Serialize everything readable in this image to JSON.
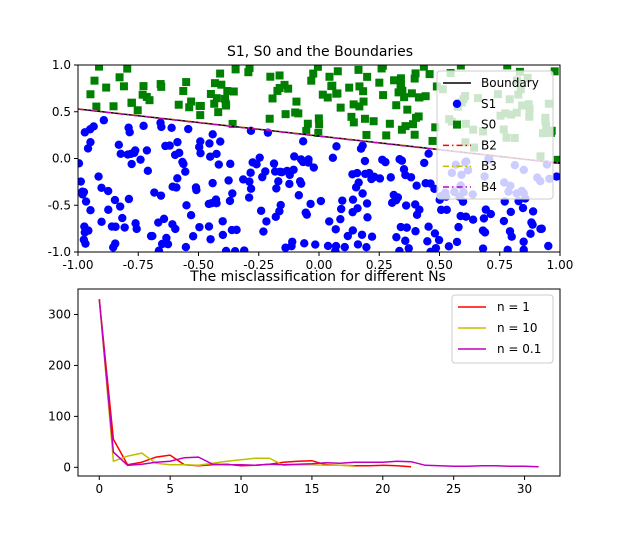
{
  "chart_data": [
    {
      "type": "scatter",
      "title": "S1, S0 and the Boundaries",
      "xlim": [
        -1.0,
        1.0
      ],
      "ylim": [
        -1.0,
        1.0
      ],
      "xticks": [
        "-1.00",
        "-0.75",
        "-0.50",
        "-0.25",
        "0.00",
        "0.25",
        "0.50",
        "0.75",
        "1.00"
      ],
      "yticks": [
        "-1.0",
        "-0.5",
        "0.0",
        "0.5",
        "1.0"
      ],
      "grid": false,
      "legend_position": "top-right",
      "boundary": {
        "x1": -1.0,
        "y1": 0.53,
        "x2": 1.0,
        "y2": -0.05
      },
      "legend": [
        {
          "label": "Boundary",
          "color": "#000000",
          "marker": "line",
          "dash": "solid"
        },
        {
          "label": "S1",
          "color": "#0000ff",
          "marker": "circle"
        },
        {
          "label": "S0",
          "color": "#008000",
          "marker": "square"
        },
        {
          "label": "B2",
          "color": "#ff0000",
          "marker": "line",
          "dash": "dashdot"
        },
        {
          "label": "B3",
          "color": "#bfbf00",
          "marker": "line",
          "dash": "dashdot"
        },
        {
          "label": "B4",
          "color": "#bf00bf",
          "marker": "line",
          "dash": "dashdot"
        }
      ],
      "point_counts": {
        "S1": 290,
        "S0": 160
      }
    },
    {
      "type": "line",
      "title": "The misclassification for different Ns",
      "xlim": [
        -1.5,
        32.5
      ],
      "ylim": [
        -17,
        350
      ],
      "xticks": [
        0,
        5,
        10,
        15,
        20,
        25,
        30
      ],
      "yticks": [
        0,
        100,
        200,
        300
      ],
      "legend_position": "top-right",
      "series": [
        {
          "name": "n = 1",
          "color": "#ff0000",
          "x": [
            0,
            1,
            2,
            3,
            4,
            5,
            6,
            7,
            8,
            9,
            10,
            11,
            12,
            13,
            14,
            15,
            16,
            17,
            18,
            19,
            20,
            21,
            22
          ],
          "y": [
            330,
            55,
            5,
            10,
            20,
            24,
            5,
            3,
            5,
            6,
            3,
            4,
            6,
            10,
            12,
            13,
            5,
            4,
            3,
            3,
            4,
            3,
            1
          ]
        },
        {
          "name": "n = 10",
          "color": "#bfbf00",
          "x": [
            0,
            1,
            2,
            3,
            4,
            5,
            6,
            7,
            8,
            9,
            10,
            11,
            12,
            13,
            14,
            15,
            16,
            17,
            18
          ],
          "y": [
            330,
            12,
            22,
            28,
            8,
            5,
            5,
            4,
            8,
            12,
            15,
            18,
            18,
            4,
            5,
            5,
            4,
            4,
            2
          ]
        },
        {
          "name": "n = 0.1",
          "color": "#bf00bf",
          "x": [
            0,
            1,
            2,
            3,
            4,
            5,
            6,
            7,
            8,
            9,
            10,
            11,
            12,
            13,
            14,
            15,
            16,
            17,
            18,
            19,
            20,
            21,
            22,
            23,
            24,
            25,
            26,
            27,
            28,
            29,
            30,
            31
          ],
          "y": [
            330,
            30,
            4,
            6,
            10,
            12,
            19,
            20,
            6,
            5,
            5,
            4,
            6,
            5,
            6,
            7,
            9,
            8,
            10,
            10,
            10,
            12,
            11,
            4,
            3,
            2,
            2,
            3,
            3,
            2,
            2,
            1
          ]
        }
      ]
    }
  ]
}
